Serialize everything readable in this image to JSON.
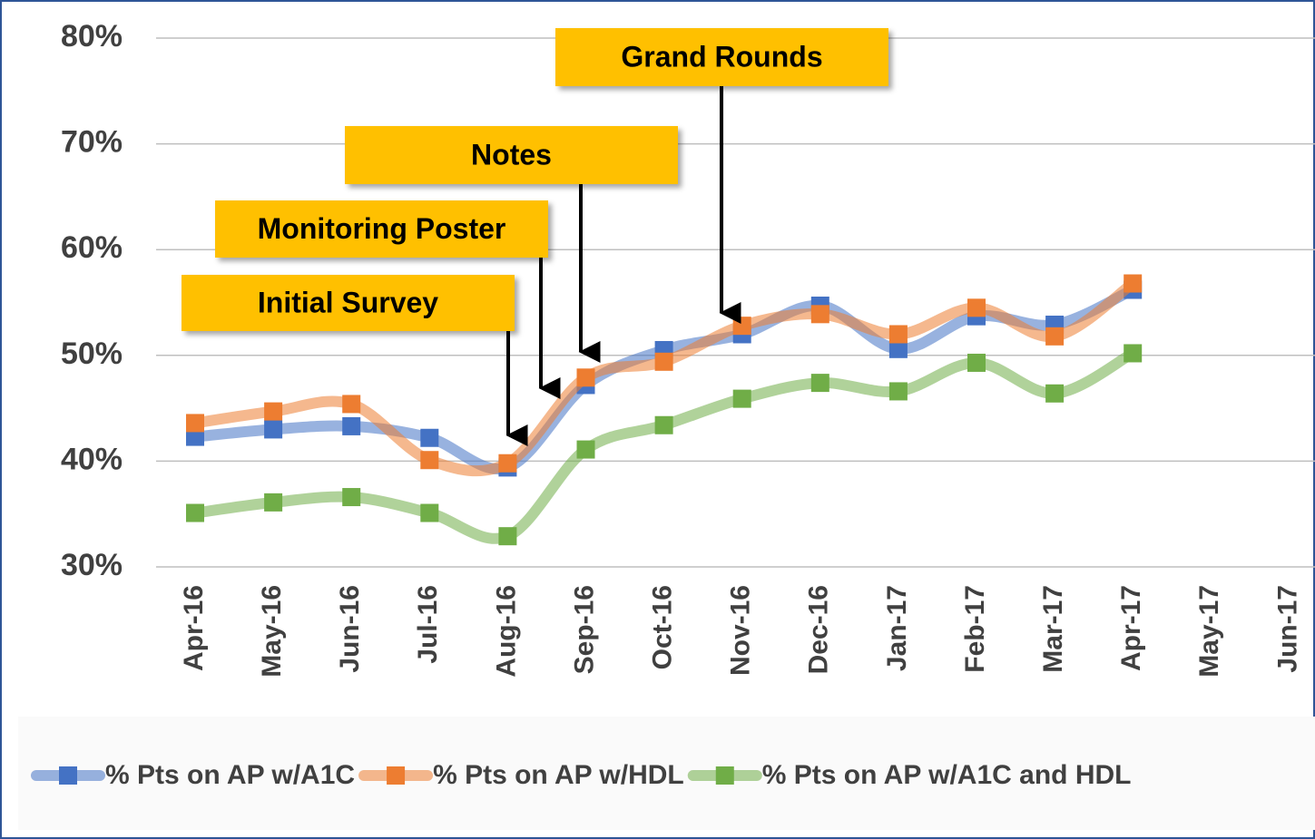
{
  "chart_data": {
    "type": "line",
    "categories": [
      "Apr-16",
      "May-16",
      "Jun-16",
      "Jul-16",
      "Aug-16",
      "Sep-16",
      "Oct-16",
      "Nov-16",
      "Dec-16",
      "Jan-17",
      "Feb-17",
      "Mar-17",
      "Apr-17",
      "May-17",
      "Jun-17"
    ],
    "series": [
      {
        "name": "% Pts on AP w/A1C",
        "color": "#4472c4",
        "values": [
          42.3,
          43.0,
          43.3,
          42.2,
          39.4,
          47.2,
          50.5,
          52.0,
          54.7,
          50.6,
          53.7,
          52.9,
          56.2,
          null,
          null
        ]
      },
      {
        "name": "% Pts on AP w/HDL",
        "color": "#ed7d31",
        "values": [
          43.6,
          44.7,
          45.4,
          40.1,
          39.8,
          47.9,
          49.4,
          52.8,
          53.9,
          52.0,
          54.5,
          51.8,
          56.8,
          null,
          null
        ]
      },
      {
        "name": "% Pts on AP w/A1C and HDL",
        "color": "#70ad47",
        "values": [
          35.1,
          36.1,
          36.6,
          35.1,
          32.9,
          41.1,
          43.4,
          45.9,
          47.4,
          46.6,
          49.3,
          46.4,
          50.2,
          null,
          null
        ]
      }
    ],
    "ylim": [
      30,
      80
    ],
    "yticks": [
      {
        "value": 30,
        "label": "30%"
      },
      {
        "value": 40,
        "label": "40%"
      },
      {
        "value": 50,
        "label": "50%"
      },
      {
        "value": 60,
        "label": "60%"
      },
      {
        "value": 70,
        "label": "70%"
      },
      {
        "value": 80,
        "label": "80%"
      }
    ],
    "grid": true,
    "legend": "bottom",
    "annotations": [
      "Initial Survey",
      "Monitoring Poster",
      "Notes",
      "Grand Rounds"
    ]
  }
}
